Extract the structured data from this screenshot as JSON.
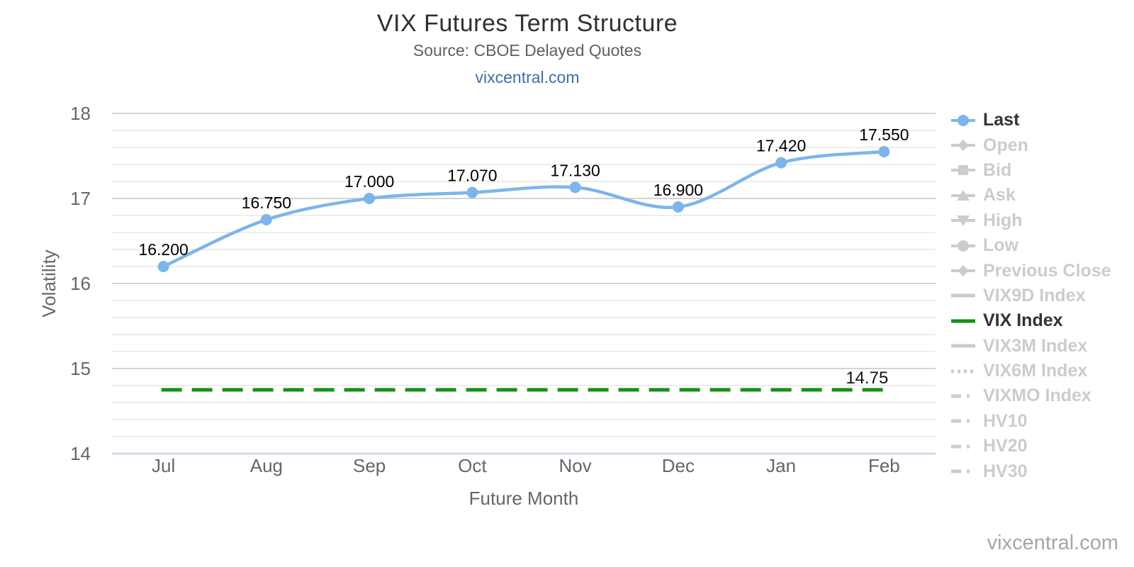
{
  "title": "VIX Futures Term Structure",
  "subtitle": "Source: CBOE Delayed Quotes",
  "link": "vixcentral.com",
  "watermark": "vixcentral.com",
  "colors": {
    "last_series": "#7cb5ec",
    "vix_index": "#149114",
    "inactive": "#cccccc",
    "active_text": "#333333",
    "axis_text": "#666666",
    "data_label": "#000000",
    "link": "#3d6fa8",
    "grid_major": "#d4d4d4",
    "grid_minor": "#e7e7e7",
    "axis_line": "#ccd6eb"
  },
  "chart_data": {
    "type": "line",
    "title": "VIX Futures Term Structure",
    "subtitle": "Source: CBOE Delayed Quotes",
    "xlabel": "Future Month",
    "ylabel": "Volatility",
    "categories": [
      "Jul",
      "Aug",
      "Sep",
      "Oct",
      "Nov",
      "Dec",
      "Jan",
      "Feb"
    ],
    "series": [
      {
        "name": "Last",
        "values": [
          16.2,
          16.75,
          17.0,
          17.07,
          17.13,
          16.9,
          17.42,
          17.55
        ],
        "labels": [
          "16.200",
          "16.750",
          "17.000",
          "17.070",
          "17.130",
          "16.900",
          "17.420",
          "17.550"
        ],
        "color": "#7cb5ec",
        "marker": "circle",
        "style": "solid-spline"
      },
      {
        "name": "VIX Index",
        "value": 14.75,
        "label": "14.75",
        "color": "#149114",
        "style": "dashed-horizontal-line"
      }
    ],
    "ylim": [
      14,
      18
    ],
    "y_major_ticks": [
      "18",
      "17",
      "16",
      "15",
      "14"
    ],
    "y_major_values": [
      18,
      17,
      16,
      15,
      14
    ],
    "y_minor_step": 0.2,
    "grid": true,
    "legend_position": "right"
  },
  "legend": {
    "items": [
      {
        "label": "Last",
        "marker": "line-circle",
        "active": true,
        "color": "#7cb5ec"
      },
      {
        "label": "Open",
        "marker": "line-diamond",
        "active": false
      },
      {
        "label": "Bid",
        "marker": "line-square",
        "active": false
      },
      {
        "label": "Ask",
        "marker": "line-triangle-up",
        "active": false
      },
      {
        "label": "High",
        "marker": "line-triangle-down",
        "active": false
      },
      {
        "label": "Low",
        "marker": "line-circle",
        "active": false
      },
      {
        "label": "Previous Close",
        "marker": "line-diamond",
        "active": false
      },
      {
        "label": "VIX9D Index",
        "marker": "line",
        "active": false
      },
      {
        "label": "VIX Index",
        "marker": "line",
        "active": true,
        "color": "#149114"
      },
      {
        "label": "VIX3M Index",
        "marker": "line",
        "active": false
      },
      {
        "label": "VIX6M Index",
        "marker": "dotted-line",
        "active": false
      },
      {
        "label": "VIXMO Index",
        "marker": "dash-dot-line",
        "active": false
      },
      {
        "label": "HV10",
        "marker": "dash-dot-line",
        "active": false
      },
      {
        "label": "HV20",
        "marker": "dash-dot-line",
        "active": false
      },
      {
        "label": "HV30",
        "marker": "dash-dot-line",
        "active": false
      }
    ]
  }
}
